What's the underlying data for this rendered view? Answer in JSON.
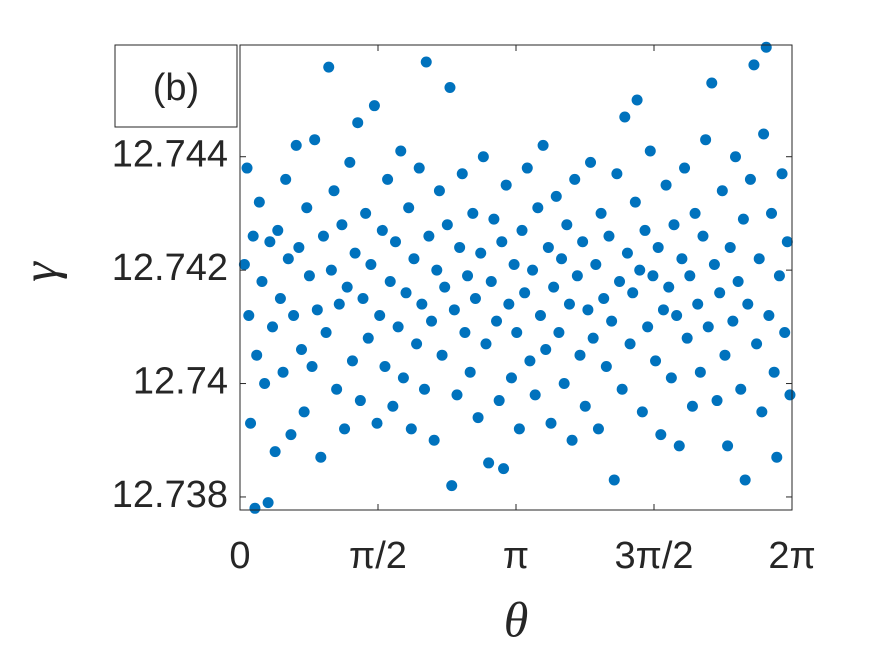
{
  "chart_data": {
    "type": "scatter",
    "annotation": "(b)",
    "x_label": "θ",
    "y_label": "γ",
    "color": "#0072bd",
    "xlim": [
      0,
      6.2832
    ],
    "ylim": [
      12.73777,
      12.74597
    ],
    "xticks": [
      0,
      {
        "value": 1.5708,
        "label": "π/2"
      },
      {
        "value": 3.1416,
        "label": "π"
      },
      {
        "value": 4.7124,
        "label": "3π/2"
      },
      {
        "value": 6.2832,
        "label": "2π"
      }
    ],
    "yticks": [
      12.738,
      12.74,
      12.742,
      12.744
    ],
    "x": [
      0.05,
      0.08,
      0.1,
      0.12,
      0.15,
      0.17,
      0.19,
      0.22,
      0.25,
      0.28,
      0.32,
      0.34,
      0.37,
      0.4,
      0.43,
      0.46,
      0.49,
      0.52,
      0.55,
      0.58,
      0.61,
      0.64,
      0.67,
      0.7,
      0.73,
      0.76,
      0.79,
      0.82,
      0.85,
      0.88,
      0.92,
      0.95,
      0.98,
      1.01,
      1.04,
      1.07,
      1.1,
      1.13,
      1.16,
      1.19,
      1.22,
      1.25,
      1.28,
      1.31,
      1.34,
      1.37,
      1.4,
      1.43,
      1.46,
      1.49,
      1.53,
      1.56,
      1.59,
      1.62,
      1.65,
      1.68,
      1.71,
      1.74,
      1.77,
      1.8,
      1.83,
      1.86,
      1.89,
      1.92,
      1.95,
      1.98,
      2.01,
      2.04,
      2.07,
      2.1,
      2.12,
      2.15,
      2.18,
      2.21,
      2.24,
      2.27,
      2.3,
      2.33,
      2.36,
      2.39,
      2.41,
      2.44,
      2.47,
      2.5,
      2.53,
      2.56,
      2.59,
      2.62,
      2.65,
      2.68,
      2.71,
      2.74,
      2.77,
      2.8,
      2.83,
      2.86,
      2.89,
      2.92,
      2.95,
      2.98,
      3.0,
      3.03,
      3.06,
      3.09,
      3.12,
      3.15,
      3.18,
      3.21,
      3.24,
      3.27,
      3.3,
      3.33,
      3.36,
      3.39,
      3.42,
      3.45,
      3.48,
      3.51,
      3.54,
      3.57,
      3.6,
      3.63,
      3.66,
      3.69,
      3.72,
      3.75,
      3.78,
      3.81,
      3.84,
      3.87,
      3.9,
      3.93,
      3.96,
      3.99,
      4.02,
      4.05,
      4.08,
      4.11,
      4.14,
      4.17,
      4.2,
      4.23,
      4.26,
      4.29,
      4.32,
      4.35,
      4.38,
      4.41,
      4.44,
      4.47,
      4.5,
      4.52,
      4.55,
      4.58,
      4.61,
      4.64,
      4.67,
      4.7,
      4.73,
      4.76,
      4.79,
      4.82,
      4.85,
      4.88,
      4.91,
      4.94,
      4.97,
      5.0,
      5.03,
      5.06,
      5.09,
      5.12,
      5.15,
      5.18,
      5.21,
      5.24,
      5.27,
      5.3,
      5.33,
      5.37,
      5.4,
      5.43,
      5.46,
      5.49,
      5.52,
      5.55,
      5.58,
      5.61,
      5.64,
      5.67,
      5.7,
      5.73,
      5.75,
      5.78,
      5.81,
      5.85,
      5.88,
      5.91,
      5.94,
      5.96,
      5.99,
      6.02,
      6.05,
      6.08,
      6.11,
      6.14,
      6.17,
      6.2,
      6.23,
      6.26
    ],
    "values": [
      12.7421,
      12.7438,
      12.7412,
      12.7393,
      12.7426,
      12.7378,
      12.7405,
      12.7432,
      12.7418,
      12.74,
      12.7379,
      12.7425,
      12.741,
      12.7388,
      12.7427,
      12.7415,
      12.7402,
      12.7436,
      12.7422,
      12.7391,
      12.7412,
      12.7442,
      12.7424,
      12.7406,
      12.7395,
      12.7431,
      12.7419,
      12.7403,
      12.7443,
      12.7413,
      12.7387,
      12.7426,
      12.7409,
      12.74558,
      12.742,
      12.7434,
      12.7399,
      12.7414,
      12.7428,
      12.7392,
      12.7417,
      12.7439,
      12.7404,
      12.7423,
      12.7446,
      12.7397,
      12.7415,
      12.743,
      12.7408,
      12.7421,
      12.7449,
      12.7393,
      12.7412,
      12.7427,
      12.7403,
      12.7436,
      12.7418,
      12.7396,
      12.7425,
      12.741,
      12.7441,
      12.7401,
      12.7416,
      12.7431,
      12.7392,
      12.7422,
      12.7407,
      12.7438,
      12.7414,
      12.7399,
      12.74567,
      12.7426,
      12.7411,
      12.739,
      12.742,
      12.7434,
      12.7405,
      12.7417,
      12.7428,
      12.74522,
      12.7382,
      12.7413,
      12.7398,
      12.7424,
      12.7437,
      12.7409,
      12.7419,
      12.7402,
      12.743,
      12.7415,
      12.7394,
      12.7423,
      12.744,
      12.7407,
      12.7386,
      12.7418,
      12.7429,
      12.7411,
      12.7397,
      12.7425,
      12.7385,
      12.7435,
      12.7414,
      12.7401,
      12.7421,
      12.7409,
      12.7392,
      12.7427,
      12.7416,
      12.7438,
      12.7404,
      12.742,
      12.7398,
      12.7431,
      12.7412,
      12.7442,
      12.7406,
      12.7424,
      12.7393,
      12.7417,
      12.7433,
      12.7409,
      12.7422,
      12.74,
      12.7428,
      12.7414,
      12.739,
      12.7436,
      12.7419,
      12.7405,
      12.7425,
      12.7396,
      12.7413,
      12.7439,
      12.7408,
      12.7421,
      12.7392,
      12.743,
      12.7415,
      12.7403,
      12.7426,
      12.7411,
      12.7383,
      12.7437,
      12.7418,
      12.7399,
      12.7447,
      12.7423,
      12.7407,
      12.7416,
      12.7432,
      12.745,
      12.742,
      12.7395,
      12.7427,
      12.741,
      12.7441,
      12.7419,
      12.7404,
      12.7424,
      12.7391,
      12.7413,
      12.7435,
      12.7417,
      12.7401,
      12.7428,
      12.7412,
      12.7389,
      12.7422,
      12.7438,
      12.7408,
      12.7419,
      12.7396,
      12.743,
      12.7414,
      12.7402,
      12.7426,
      12.7443,
      12.741,
      12.7453,
      12.7421,
      12.7397,
      12.7416,
      12.7434,
      12.7405,
      12.7389,
      12.7424,
      12.7411,
      12.744,
      12.7418,
      12.7399,
      12.7429,
      12.7383,
      12.7414,
      12.7436,
      12.74562,
      12.7407,
      12.7422,
      12.7395,
      12.7444,
      12.74593,
      12.7412,
      12.743,
      12.7402,
      12.7387,
      12.7419,
      12.7437,
      12.7409,
      12.7425,
      12.7398
    ]
  }
}
